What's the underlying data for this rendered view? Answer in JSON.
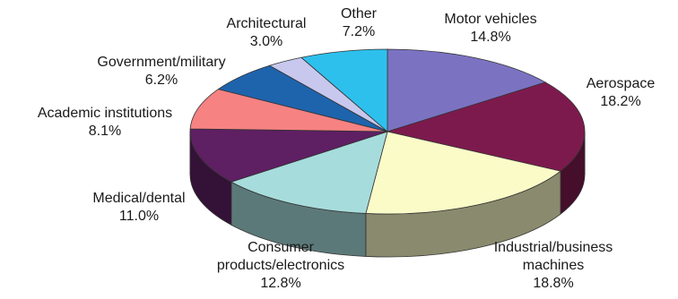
{
  "chart_data": {
    "type": "pie",
    "style": "3d",
    "title": "",
    "slices": [
      {
        "label": "Motor vehicles",
        "value": 14.8,
        "value_label": "14.8%",
        "color": "#7b73c2"
      },
      {
        "label": "Aerospace",
        "value": 18.2,
        "value_label": "18.2%",
        "color": "#7d1a4d"
      },
      {
        "label": "Industrial/business machines",
        "label_lines": [
          "Industrial/business",
          "machines"
        ],
        "value": 18.8,
        "value_label": "18.8%",
        "color": "#fbfbc8"
      },
      {
        "label": "Consumer products/electronics",
        "label_lines": [
          "Consumer",
          "products/electronics"
        ],
        "value": 12.8,
        "value_label": "12.8%",
        "color": "#a7dcdc"
      },
      {
        "label": "Medical/dental",
        "value": 11.0,
        "value_label": "11.0%",
        "color": "#5e1f63"
      },
      {
        "label": "Academic institutions",
        "value": 8.1,
        "value_label": "8.1%",
        "color": "#f68282"
      },
      {
        "label": "Government/military",
        "value": 6.2,
        "value_label": "6.2%",
        "color": "#1e64ad"
      },
      {
        "label": "Architectural",
        "value": 3.0,
        "value_label": "3.0%",
        "color": "#c8c8ee"
      },
      {
        "label": "Other",
        "value": 7.2,
        "value_label": "7.2%",
        "color": "#2ec0ec"
      }
    ]
  }
}
